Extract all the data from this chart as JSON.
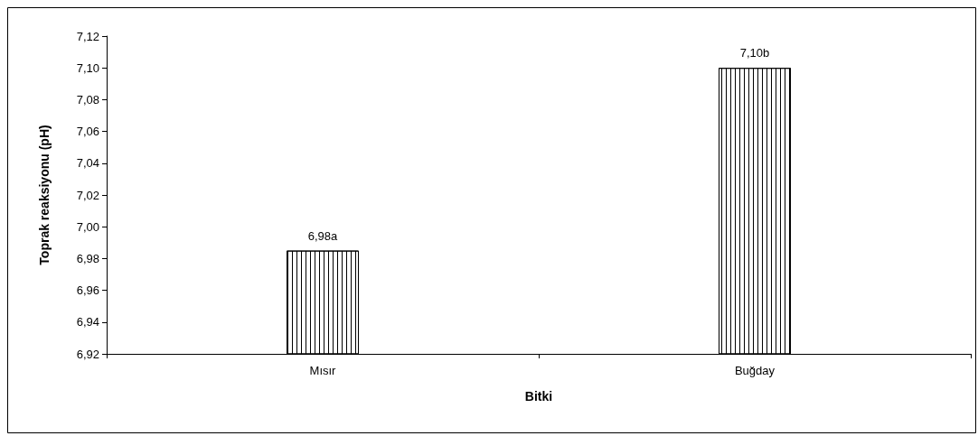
{
  "chart_data": {
    "type": "bar",
    "xlabel": "Bitki",
    "ylabel": "Toprak reaksiyonu (pH)",
    "categories": [
      "Mısır",
      "Buğday"
    ],
    "values": [
      6.985,
      7.1
    ],
    "value_labels": [
      "6,98a",
      "7,10b"
    ],
    "color": "#000000",
    "ylim": [
      6.92,
      7.12
    ],
    "yticks": [
      {
        "value": 6.92,
        "label": "6,92"
      },
      {
        "value": 6.94,
        "label": "6,94"
      },
      {
        "value": 6.96,
        "label": "6,96"
      },
      {
        "value": 6.98,
        "label": "6,98"
      },
      {
        "value": 7.0,
        "label": "7,00"
      },
      {
        "value": 7.02,
        "label": "7,02"
      },
      {
        "value": 7.04,
        "label": "7,04"
      },
      {
        "value": 7.06,
        "label": "7,06"
      },
      {
        "value": 7.08,
        "label": "7,08"
      },
      {
        "value": 7.1,
        "label": "7,10"
      },
      {
        "value": 7.12,
        "label": "7,12"
      }
    ],
    "grid": false
  }
}
